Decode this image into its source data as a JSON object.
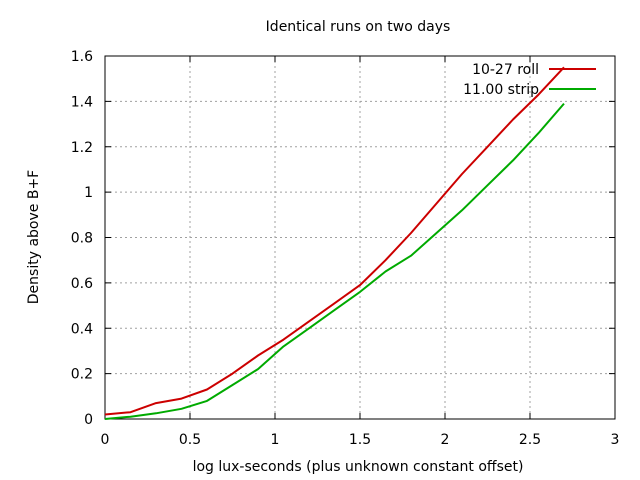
{
  "chart_data": {
    "type": "line",
    "title": "Identical runs on two days",
    "xlabel": "log lux-seconds (plus unknown constant offset)",
    "ylabel": "Density above B+F",
    "xlim": [
      0,
      3
    ],
    "ylim": [
      0,
      1.6
    ],
    "xticks": [
      "0",
      "0.5",
      "1",
      "1.5",
      "2",
      "2.5",
      "3"
    ],
    "yticks": [
      "0",
      "0.2",
      "0.4",
      "0.6",
      "0.8",
      "1",
      "1.2",
      "1.4",
      "1.6"
    ],
    "grid": true,
    "legend_position": "top-right",
    "series": [
      {
        "name": "10-27 roll",
        "color": "#cc0000",
        "x": [
          0,
          0.15,
          0.3,
          0.45,
          0.6,
          0.75,
          0.9,
          1.05,
          1.2,
          1.35,
          1.5,
          1.65,
          1.8,
          1.95,
          2.1,
          2.25,
          2.4,
          2.55,
          2.7
        ],
        "y": [
          0.02,
          0.03,
          0.07,
          0.09,
          0.13,
          0.2,
          0.28,
          0.35,
          0.43,
          0.51,
          0.59,
          0.7,
          0.82,
          0.95,
          1.08,
          1.2,
          1.32,
          1.43,
          1.55
        ]
      },
      {
        "name": "11.00 strip",
        "color": "#00aa00",
        "x": [
          0,
          0.15,
          0.3,
          0.45,
          0.6,
          0.75,
          0.9,
          1.05,
          1.2,
          1.35,
          1.5,
          1.65,
          1.8,
          1.95,
          2.1,
          2.25,
          2.4,
          2.55,
          2.7
        ],
        "y": [
          0.0,
          0.01,
          0.025,
          0.045,
          0.08,
          0.15,
          0.22,
          0.32,
          0.4,
          0.48,
          0.56,
          0.65,
          0.72,
          0.82,
          0.92,
          1.03,
          1.14,
          1.26,
          1.39
        ]
      }
    ]
  }
}
